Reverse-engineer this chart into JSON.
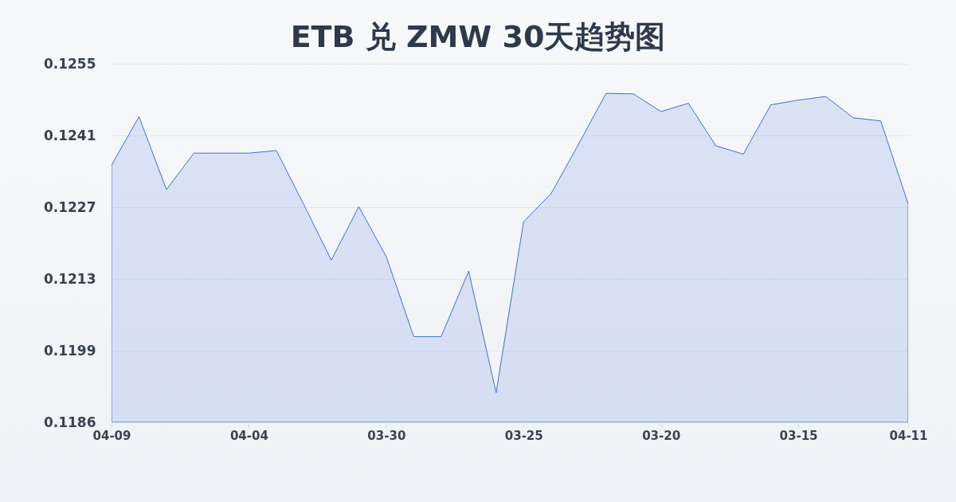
{
  "chart_data": {
    "type": "area",
    "title": "ETB 兑 ZMW 30天趋势图",
    "categories": [
      "04-09",
      null,
      null,
      null,
      null,
      "04-04",
      null,
      null,
      null,
      null,
      "03-30",
      null,
      null,
      null,
      null,
      "03-25",
      null,
      null,
      null,
      null,
      "03-20",
      null,
      null,
      null,
      null,
      "03-15",
      null,
      null,
      null,
      "04-11"
    ],
    "series": [
      {
        "color": "#3b6fd6",
        "values": [
          0.12351,
          0.12444,
          0.12304,
          0.12374,
          0.12374,
          0.12374,
          0.12379,
          0.12275,
          0.12168,
          0.12271,
          0.12175,
          0.12021,
          0.12021,
          0.12147,
          0.11913,
          0.12242,
          0.12296,
          0.12391,
          0.12489,
          0.12488,
          0.12454,
          0.1247,
          0.12388,
          0.12372,
          0.12467,
          0.12476,
          0.12483,
          0.12442,
          0.12436,
          0.12276
        ]
      }
    ],
    "ylim": [
      0.11856,
      0.12546
    ],
    "yticks": [
      {
        "value": 0.11856,
        "label": "0.1186"
      },
      {
        "value": 0.11994,
        "label": "0.1199"
      },
      {
        "value": 0.12132,
        "label": "0.1213"
      },
      {
        "value": 0.1227,
        "label": "0.1227"
      },
      {
        "value": 0.12408,
        "label": "0.1241"
      },
      {
        "value": 0.12546,
        "label": "0.1255"
      }
    ],
    "grid": "y"
  }
}
